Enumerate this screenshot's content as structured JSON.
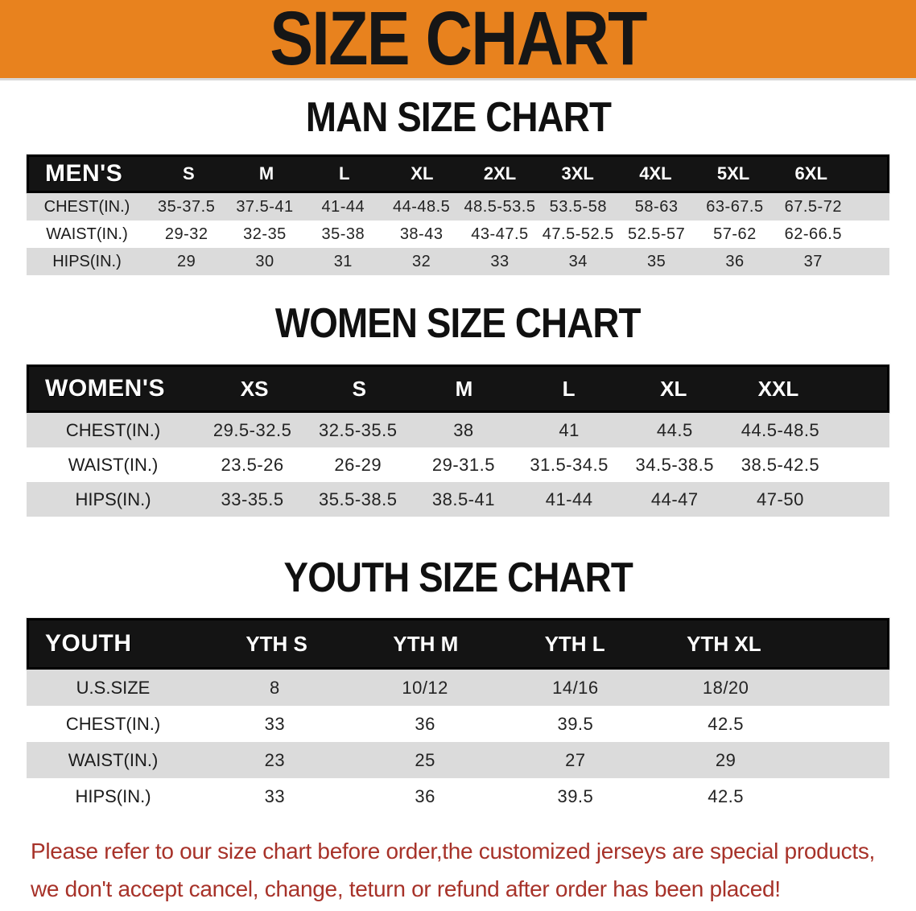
{
  "colors": {
    "banner_bg": "#E8821E",
    "header_bar": "#141414",
    "row_shade": "#DBDBDB",
    "note_red": "#A73229"
  },
  "banner": {
    "title": "SIZE CHART"
  },
  "sections": {
    "men": {
      "heading": "MAN SIZE CHART",
      "table": {
        "header_label": "MEN'S",
        "columns": [
          "S",
          "M",
          "L",
          "XL",
          "2XL",
          "3XL",
          "4XL",
          "5XL",
          "6XL"
        ],
        "rows": [
          {
            "label": "CHEST(IN.)",
            "values": [
              "35-37.5",
              "37.5-41",
              "41-44",
              "44-48.5",
              "48.5-53.5",
              "53.5-58",
              "58-63",
              "63-67.5",
              "67.5-72"
            ]
          },
          {
            "label": "WAIST(IN.)",
            "values": [
              "29-32",
              "32-35",
              "35-38",
              "38-43",
              "43-47.5",
              "47.5-52.5",
              "52.5-57",
              "57-62",
              "62-66.5"
            ]
          },
          {
            "label": "HIPS(IN.)",
            "values": [
              "29",
              "30",
              "31",
              "32",
              "33",
              "34",
              "35",
              "36",
              "37"
            ]
          }
        ]
      }
    },
    "women": {
      "heading": "WOMEN SIZE CHART",
      "table": {
        "header_label": "WOMEN'S",
        "columns": [
          "XS",
          "S",
          "M",
          "L",
          "XL",
          "XXL"
        ],
        "rows": [
          {
            "label": "CHEST(IN.)",
            "values": [
              "29.5-32.5",
              "32.5-35.5",
              "38",
              "41",
              "44.5",
              "44.5-48.5"
            ]
          },
          {
            "label": "WAIST(IN.)",
            "values": [
              "23.5-26",
              "26-29",
              "29-31.5",
              "31.5-34.5",
              "34.5-38.5",
              "38.5-42.5"
            ]
          },
          {
            "label": "HIPS(IN.)",
            "values": [
              "33-35.5",
              "35.5-38.5",
              "38.5-41",
              "41-44",
              "44-47",
              "47-50"
            ]
          }
        ]
      }
    },
    "youth": {
      "heading": "YOUTH SIZE CHART",
      "table": {
        "header_label": "YOUTH",
        "columns": [
          "YTH S",
          "YTH M",
          "YTH L",
          "YTH XL"
        ],
        "rows": [
          {
            "label": "U.S.SIZE",
            "values": [
              "8",
              "10/12",
              "14/16",
              "18/20"
            ]
          },
          {
            "label": "CHEST(IN.)",
            "values": [
              "33",
              "36",
              "39.5",
              "42.5"
            ]
          },
          {
            "label": "WAIST(IN.)",
            "values": [
              "23",
              "25",
              "27",
              "29"
            ]
          },
          {
            "label": "HIPS(IN.)",
            "values": [
              "33",
              "36",
              "39.5",
              "42.5"
            ]
          }
        ]
      }
    }
  },
  "footer_note": {
    "line1": "Please refer to our size chart before order,the customized jerseys are special products,",
    "line2": "we don't accept cancel, change, teturn or refund after order has been placed!"
  }
}
